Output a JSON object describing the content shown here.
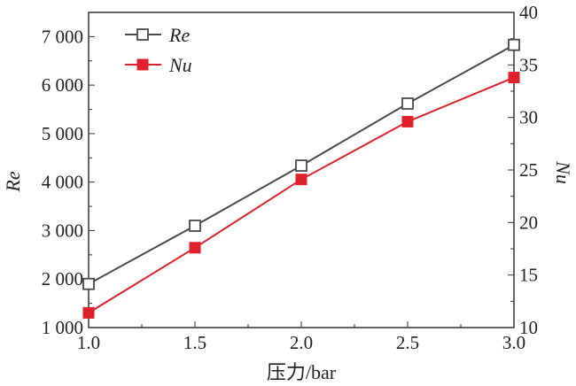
{
  "chart_data": {
    "type": "line",
    "title": "",
    "xlabel": "压力/bar",
    "ylabel": "Re",
    "y2label": "Nu",
    "x": [
      1.0,
      1.5,
      2.0,
      2.5,
      3.0
    ],
    "xlim": [
      1.0,
      3.0
    ],
    "ylim": [
      1000,
      7500
    ],
    "y2lim": [
      10,
      40
    ],
    "xticks": [
      "1.0",
      "1.5",
      "2.0",
      "2.5",
      "3.0"
    ],
    "yticks": [
      "1 000",
      "2 000",
      "3 000",
      "4 000",
      "5 000",
      "6 000",
      "7 000"
    ],
    "y2ticks": [
      "10",
      "15",
      "20",
      "25",
      "30",
      "35",
      "40"
    ],
    "grid": false,
    "legend_position": "top-left",
    "series": [
      {
        "name": "Re",
        "axis": "left",
        "color": "#4a4a4a",
        "marker": "open-square",
        "values": [
          1900,
          3100,
          4340,
          5620,
          6830
        ]
      },
      {
        "name": "Nu",
        "axis": "right",
        "color": "#e0202a",
        "marker": "filled-square",
        "values": [
          11.4,
          17.6,
          24.1,
          29.6,
          33.8
        ]
      }
    ]
  }
}
